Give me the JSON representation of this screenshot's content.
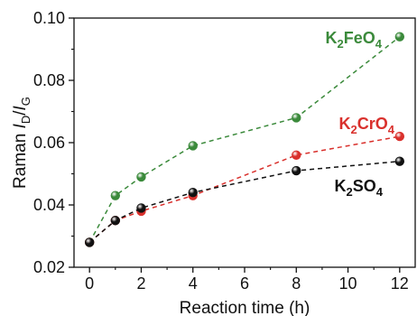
{
  "chart_data": {
    "type": "line",
    "title": "",
    "xlabel": "Reaction time (h)",
    "ylabel": {
      "prefix": "Raman ",
      "i1": "I",
      "s1": "D",
      "slash": "/",
      "i2": "I",
      "s2": "G"
    },
    "xlim": [
      -0.6,
      12.6
    ],
    "ylim": [
      0.02,
      0.1
    ],
    "xticks": [
      0,
      2,
      4,
      6,
      8,
      10,
      12
    ],
    "xtick_labels": [
      "0",
      "2",
      "4",
      "6",
      "8",
      "10",
      "12"
    ],
    "yticks": [
      0.02,
      0.04,
      0.06,
      0.08,
      0.1
    ],
    "ytick_labels": [
      "0.02",
      "0.04",
      "0.06",
      "0.08",
      "0.10"
    ],
    "grid": false,
    "legend": "inline labels at right end of each series",
    "series": [
      {
        "name": "K2FeO4",
        "label": {
          "base": "K",
          "sub1": "2",
          "mid": "FeO",
          "sub2": "4"
        },
        "color": "#3b8a3b",
        "x": [
          0,
          1,
          2,
          4,
          8,
          12
        ],
        "y": [
          0.028,
          0.043,
          0.049,
          0.059,
          0.068,
          0.094
        ]
      },
      {
        "name": "K2CrO4",
        "label": {
          "base": "K",
          "sub1": "2",
          "mid": "CrO",
          "sub2": "4"
        },
        "color": "#d9302c",
        "x": [
          0,
          1,
          2,
          4,
          8,
          12
        ],
        "y": [
          0.028,
          0.035,
          0.038,
          0.043,
          0.056,
          0.062
        ]
      },
      {
        "name": "K2SO4",
        "label": {
          "base": "K",
          "sub1": "2",
          "mid": "SO",
          "sub2": "4"
        },
        "color": "#111111",
        "x": [
          0,
          1,
          2,
          4,
          8,
          12
        ],
        "y": [
          0.028,
          0.035,
          0.039,
          0.044,
          0.051,
          0.054
        ]
      }
    ]
  }
}
